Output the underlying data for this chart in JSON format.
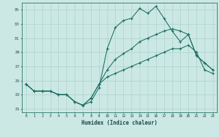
{
  "xlabel": "Humidex (Indice chaleur)",
  "bg_color": "#cce8e4",
  "grid_color": "#aad0cc",
  "line_color": "#1a6e62",
  "xlim": [
    -0.5,
    23.5
  ],
  "ylim": [
    20.5,
    36.0
  ],
  "yticks": [
    21,
    23,
    25,
    27,
    29,
    31,
    33,
    35
  ],
  "xticks": [
    0,
    1,
    2,
    3,
    4,
    5,
    6,
    7,
    8,
    9,
    10,
    11,
    12,
    13,
    14,
    15,
    16,
    17,
    18,
    19,
    20,
    21,
    22,
    23
  ],
  "line1_x": [
    0,
    1,
    2,
    3,
    4,
    5,
    6,
    7,
    8,
    9,
    10,
    11,
    12,
    13,
    14,
    15,
    16,
    17,
    18,
    19,
    20,
    21,
    22,
    23
  ],
  "line1_y": [
    24.5,
    23.5,
    23.5,
    23.5,
    23.0,
    23.0,
    22.0,
    21.5,
    22.0,
    24.0,
    29.5,
    32.5,
    33.5,
    33.8,
    35.2,
    34.5,
    35.5,
    33.8,
    32.0,
    30.5,
    31.5,
    28.5,
    27.5,
    26.5
  ],
  "line2_x": [
    0,
    1,
    2,
    3,
    4,
    5,
    6,
    7,
    8,
    9,
    10,
    11,
    12,
    13,
    14,
    15,
    16,
    17,
    18,
    19,
    20,
    21,
    22,
    23
  ],
  "line2_y": [
    24.5,
    23.5,
    23.5,
    23.5,
    23.0,
    23.0,
    22.0,
    21.5,
    22.5,
    24.5,
    26.5,
    28.0,
    28.8,
    29.5,
    30.5,
    31.0,
    31.5,
    32.0,
    32.3,
    32.0,
    31.5,
    28.5,
    27.5,
    26.5
  ],
  "line3_x": [
    0,
    1,
    2,
    3,
    4,
    5,
    6,
    7,
    8,
    9,
    10,
    11,
    12,
    13,
    14,
    15,
    16,
    17,
    18,
    19,
    20,
    21,
    22,
    23
  ],
  "line3_y": [
    24.5,
    23.5,
    23.5,
    23.5,
    23.0,
    23.0,
    22.0,
    21.5,
    22.5,
    24.5,
    25.5,
    26.0,
    26.5,
    27.0,
    27.5,
    28.0,
    28.5,
    29.0,
    29.5,
    29.5,
    30.0,
    29.0,
    26.5,
    26.0
  ]
}
